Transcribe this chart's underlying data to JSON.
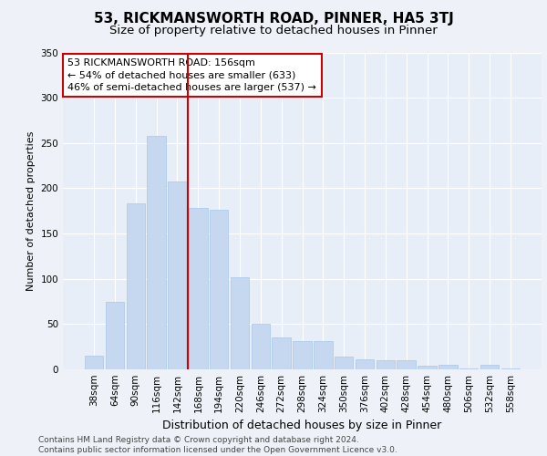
{
  "title": "53, RICKMANSWORTH ROAD, PINNER, HA5 3TJ",
  "subtitle": "Size of property relative to detached houses in Pinner",
  "xlabel": "Distribution of detached houses by size in Pinner",
  "ylabel": "Number of detached properties",
  "bin_labels": [
    "38sqm",
    "64sqm",
    "90sqm",
    "116sqm",
    "142sqm",
    "168sqm",
    "194sqm",
    "220sqm",
    "246sqm",
    "272sqm",
    "298sqm",
    "324sqm",
    "350sqm",
    "376sqm",
    "402sqm",
    "428sqm",
    "454sqm",
    "480sqm",
    "506sqm",
    "532sqm",
    "558sqm"
  ],
  "bar_heights": [
    15,
    75,
    183,
    258,
    207,
    178,
    176,
    102,
    50,
    35,
    31,
    31,
    14,
    11,
    10,
    10,
    4,
    5,
    1,
    5,
    1
  ],
  "bar_color": "#c5d8f0",
  "bar_edge_color": "#a8c8e8",
  "vline_x": 4.5,
  "vline_color": "#cc0000",
  "annotation_text": "53 RICKMANSWORTH ROAD: 156sqm\n← 54% of detached houses are smaller (633)\n46% of semi-detached houses are larger (537) →",
  "annotation_box_color": "#ffffff",
  "annotation_box_edge": "#cc0000",
  "ylim": [
    0,
    350
  ],
  "yticks": [
    0,
    50,
    100,
    150,
    200,
    250,
    300,
    350
  ],
  "background_color": "#eef2f8",
  "plot_bg_color": "#e8eef8",
  "footer_text": "Contains HM Land Registry data © Crown copyright and database right 2024.\nContains public sector information licensed under the Open Government Licence v3.0.",
  "title_fontsize": 11,
  "subtitle_fontsize": 9.5,
  "xlabel_fontsize": 9,
  "ylabel_fontsize": 8,
  "tick_fontsize": 7.5,
  "annotation_fontsize": 8,
  "footer_fontsize": 6.5
}
